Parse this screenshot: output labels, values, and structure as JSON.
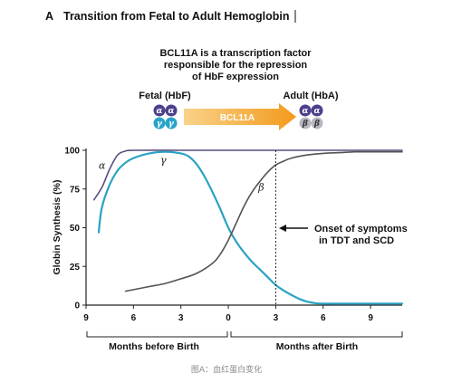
{
  "panel": {
    "letter": "A",
    "title": "Transition from Fetal to Adult Hemoglobin",
    "note_lines": [
      "BCL11A is a transcription factor",
      "responsible for the repression",
      "of HbF expression"
    ]
  },
  "diagram": {
    "fetal_label": "Fetal (HbF)",
    "adult_label": "Adult (HbA)",
    "arrow_label": "BCL11A",
    "fetal_top": [
      "α",
      "α"
    ],
    "fetal_bottom": [
      "γ",
      "γ"
    ],
    "adult_top": [
      "α",
      "α"
    ],
    "adult_bottom": [
      "β",
      "β"
    ],
    "colors": {
      "alpha": "#4d3f8c",
      "gamma": "#29a3c8",
      "beta": "#b8b8c2",
      "arrow_start": "#f9d28a",
      "arrow_end": "#f39a1c"
    }
  },
  "annotation": {
    "lines": [
      "Onset of symptoms",
      "in TDT and SCD"
    ],
    "at_x": 3
  },
  "caption": "图A：血红蛋白变化",
  "chart_data": {
    "type": "line",
    "title": "Transition from Fetal to Adult Hemoglobin",
    "ylabel": "Globin Synthesis (%)",
    "xlabel_left": "Months before Birth",
    "xlabel_right": "Months after Birth",
    "xlim": [
      -9,
      11
    ],
    "ylim": [
      0,
      100
    ],
    "x_ticks": [
      -9,
      -6,
      -3,
      0,
      3,
      6,
      9
    ],
    "x_tick_labels": [
      "9",
      "6",
      "3",
      "0",
      "3",
      "6",
      "9"
    ],
    "y_ticks": [
      0,
      25,
      50,
      75,
      100
    ],
    "y_tick_labels": [
      "0",
      "25",
      "50",
      "75",
      "100"
    ],
    "grid": false,
    "series": [
      {
        "name": "α",
        "color": "#5a4e7e",
        "x": [
          -8.5,
          -8,
          -7.5,
          -7,
          -6.5,
          -6,
          -3,
          0,
          3,
          6,
          9,
          11
        ],
        "y": [
          68,
          76,
          88,
          97,
          99.5,
          100,
          100,
          100,
          100,
          100,
          100,
          100
        ]
      },
      {
        "name": "γ",
        "color": "#2aa3c3",
        "x": [
          -8.2,
          -8,
          -7.5,
          -7,
          -6.5,
          -6,
          -5,
          -4,
          -3,
          -2.5,
          -2,
          -1.5,
          -1,
          -0.5,
          0,
          0.5,
          1,
          1.5,
          2,
          2.5,
          3,
          3.5,
          4,
          4.5,
          5,
          5.5,
          6,
          7,
          8,
          9,
          11
        ],
        "y": [
          47,
          63,
          78,
          87,
          92,
          95,
          98,
          99,
          98,
          96,
          91,
          83,
          73,
          62,
          50,
          41,
          34,
          28,
          23,
          18,
          13,
          9.5,
          6.5,
          4,
          2.2,
          1.3,
          1,
          1,
          1,
          1,
          1
        ]
      },
      {
        "name": "β",
        "color": "#555155",
        "x": [
          -6.5,
          -5,
          -4,
          -3,
          -2,
          -1,
          -0.5,
          0,
          0.5,
          1,
          1.5,
          2,
          2.5,
          3,
          3.5,
          4,
          5,
          6,
          7,
          8,
          9,
          11
        ],
        "y": [
          9,
          12,
          14,
          17,
          20.5,
          27,
          33,
          42,
          53,
          64,
          73,
          80,
          86,
          90.5,
          93,
          95,
          97,
          98,
          98.5,
          99,
          99,
          99
        ]
      }
    ]
  }
}
